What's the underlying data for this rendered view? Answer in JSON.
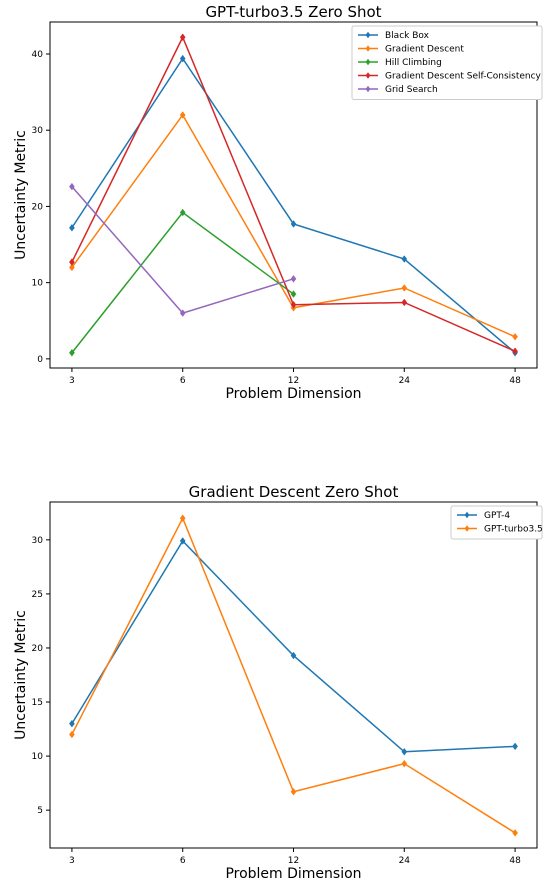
{
  "chart_data": [
    {
      "type": "line",
      "title": "GPT-turbo3.5 Zero Shot",
      "xlabel": "Problem Dimension",
      "ylabel": "Uncertainty Metric",
      "categories": [
        "3",
        "6",
        "12",
        "24",
        "48"
      ],
      "ylim": [
        -1.2,
        44.2
      ],
      "yticks": [
        0,
        10,
        20,
        30,
        40
      ],
      "legend_position": "top-right",
      "series": [
        {
          "name": "Black Box",
          "color": "#1f77b4",
          "values": [
            17.2,
            39.4,
            17.7,
            13.1,
            0.8
          ]
        },
        {
          "name": "Gradient Descent",
          "color": "#ff7f0e",
          "values": [
            12.0,
            32.0,
            6.7,
            9.3,
            2.9
          ]
        },
        {
          "name": "Hill Climbing",
          "color": "#2ca02c",
          "values": [
            0.8,
            19.2,
            8.5,
            null,
            null
          ]
        },
        {
          "name": "Gradient Descent Self-Consistency",
          "color": "#d62728",
          "values": [
            12.7,
            42.2,
            7.1,
            7.4,
            1.0
          ]
        },
        {
          "name": "Grid Search",
          "color": "#9467bd",
          "values": [
            22.6,
            6.0,
            10.5,
            null,
            null
          ]
        }
      ]
    },
    {
      "type": "line",
      "title": "Gradient Descent Zero Shot",
      "xlabel": "Problem Dimension",
      "ylabel": "Uncertainty Metric",
      "categories": [
        "3",
        "6",
        "12",
        "24",
        "48"
      ],
      "ylim": [
        1.5,
        33.5
      ],
      "yticks": [
        5,
        10,
        15,
        20,
        25,
        30
      ],
      "legend_position": "top-right",
      "series": [
        {
          "name": "GPT-4",
          "color": "#1f77b4",
          "values": [
            13.0,
            29.9,
            19.3,
            10.4,
            10.9
          ]
        },
        {
          "name": "GPT-turbo3.5",
          "color": "#ff7f0e",
          "values": [
            12.0,
            32.0,
            6.7,
            9.3,
            2.9
          ]
        }
      ]
    }
  ]
}
